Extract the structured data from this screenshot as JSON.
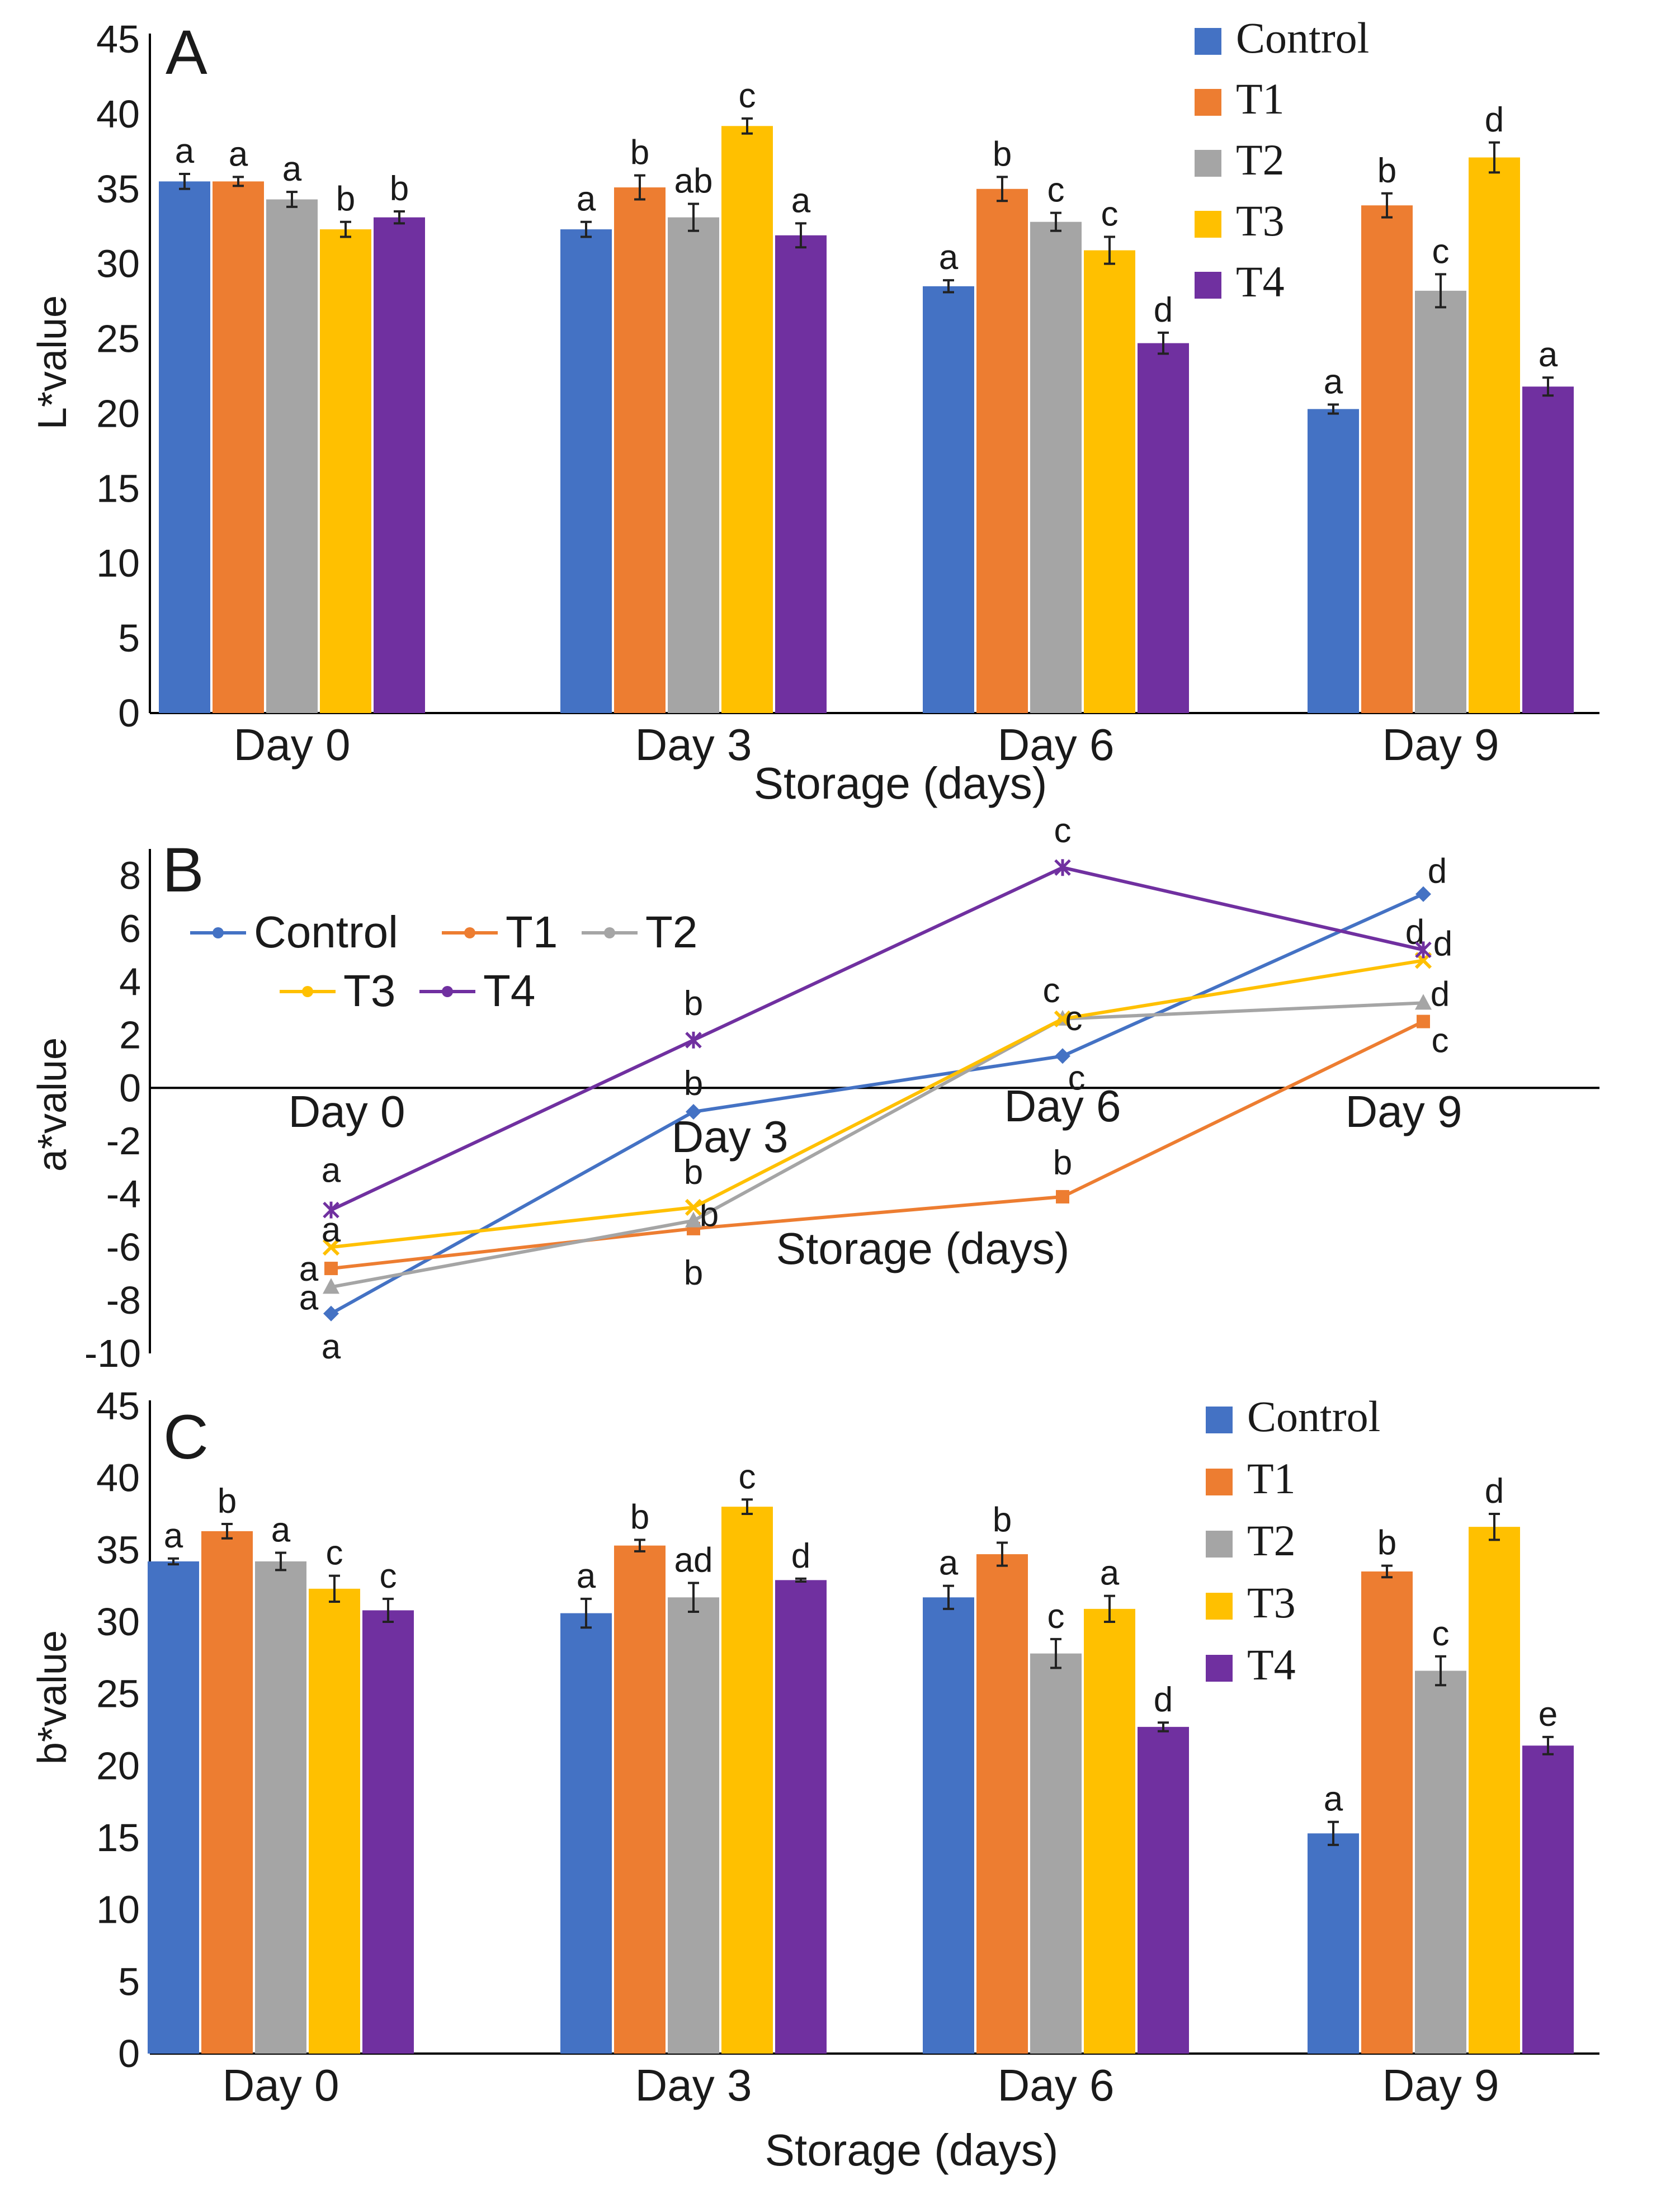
{
  "colors": {
    "Control": "#4472c4",
    "T1": "#ed7d31",
    "T2": "#a5a5a5",
    "T3": "#ffc000",
    "T4": "#7030a0"
  },
  "chart_data": [
    {
      "panel": "A",
      "type": "bar",
      "ylabel": "L*value",
      "xlabel": "Storage (days)",
      "ylim": [
        0,
        45
      ],
      "yticks": [
        "0",
        "5",
        "10",
        "15",
        "20",
        "25",
        "30",
        "35",
        "40",
        "45"
      ],
      "categories": [
        "Day 0",
        "Day 3",
        "Day 6",
        "Day 9"
      ],
      "legend": [
        "Control",
        "T1",
        "T2",
        "T3",
        "T4"
      ],
      "series": [
        {
          "name": "Control",
          "values": [
            35.5,
            32.3,
            28.5,
            20.3
          ],
          "errors": [
            0.5,
            0.5,
            0.4,
            0.3
          ],
          "letters": [
            "a",
            "a",
            "a",
            "a"
          ]
        },
        {
          "name": "T1",
          "values": [
            35.5,
            35.1,
            35.0,
            33.9
          ],
          "errors": [
            0.3,
            0.8,
            0.8,
            0.8
          ],
          "letters": [
            "a",
            "b",
            "b",
            "b"
          ]
        },
        {
          "name": "T2",
          "values": [
            34.3,
            33.1,
            32.8,
            28.2
          ],
          "errors": [
            0.5,
            0.9,
            0.6,
            1.1
          ],
          "letters": [
            "a",
            "ab",
            "c",
            "c"
          ]
        },
        {
          "name": "T3",
          "values": [
            32.3,
            39.2,
            30.9,
            37.1
          ],
          "errors": [
            0.5,
            0.5,
            0.9,
            1.0
          ],
          "letters": [
            "b",
            "c",
            "c",
            "d"
          ]
        },
        {
          "name": "T4",
          "values": [
            33.1,
            31.9,
            24.7,
            21.8
          ],
          "errors": [
            0.4,
            0.8,
            0.7,
            0.6
          ],
          "letters": [
            "b",
            "a",
            "d",
            "a"
          ]
        }
      ]
    },
    {
      "panel": "B",
      "type": "line",
      "ylabel": "a*value",
      "xlabel": "Storage (days)",
      "ylim": [
        -10,
        9
      ],
      "yticks": [
        "-10",
        "-8",
        "-6",
        "-4",
        "-2",
        "0",
        "2",
        "4",
        "6",
        "8"
      ],
      "categories": [
        "Day 0",
        "Day 3",
        "Day 6",
        "Day 9"
      ],
      "legend": [
        "Control",
        "T1",
        "T2",
        "T3",
        "T4"
      ],
      "series": [
        {
          "name": "Control",
          "values": [
            -8.5,
            -0.9,
            1.2,
            7.3
          ],
          "letters": [
            "a",
            "b",
            "c",
            "d"
          ]
        },
        {
          "name": "T1",
          "values": [
            -6.8,
            -5.3,
            -4.1,
            2.5
          ],
          "letters": [
            "a",
            "b",
            "b",
            "c"
          ]
        },
        {
          "name": "T2",
          "values": [
            -7.5,
            -5.0,
            2.6,
            3.2
          ],
          "letters": [
            "a",
            "b",
            "c",
            "d"
          ]
        },
        {
          "name": "T3",
          "values": [
            -6.0,
            -4.5,
            2.6,
            4.8
          ],
          "letters": [
            "a",
            "b",
            "c",
            "d"
          ]
        },
        {
          "name": "T4",
          "values": [
            -4.6,
            1.8,
            8.3,
            5.2
          ],
          "letters": [
            "a",
            "b",
            "c",
            "d"
          ]
        }
      ]
    },
    {
      "panel": "C",
      "type": "bar",
      "ylabel": "b*value",
      "xlabel": "Storage (days)",
      "ylim": [
        0,
        45
      ],
      "yticks": [
        "0",
        "5",
        "10",
        "15",
        "20",
        "25",
        "30",
        "35",
        "40",
        "45"
      ],
      "categories": [
        "Day 0",
        "Day 3",
        "Day 6",
        "Day 9"
      ],
      "legend": [
        "Control",
        "T1",
        "T2",
        "T3",
        "T4"
      ],
      "series": [
        {
          "name": "Control",
          "values": [
            34.2,
            30.6,
            31.7,
            15.3
          ],
          "errors": [
            0.2,
            1.0,
            0.8,
            0.8
          ],
          "letters": [
            "a",
            "a",
            "a",
            "a"
          ]
        },
        {
          "name": "T1",
          "values": [
            36.3,
            35.3,
            34.7,
            33.5
          ],
          "errors": [
            0.5,
            0.4,
            0.8,
            0.4
          ],
          "letters": [
            "b",
            "b",
            "b",
            "b"
          ]
        },
        {
          "name": "T2",
          "values": [
            34.2,
            31.7,
            27.8,
            26.6
          ],
          "errors": [
            0.6,
            1.0,
            1.0,
            1.0
          ],
          "letters": [
            "a",
            "ad",
            "c",
            "c"
          ]
        },
        {
          "name": "T3",
          "values": [
            32.3,
            38.0,
            30.9,
            36.6
          ],
          "errors": [
            0.9,
            0.5,
            0.9,
            0.9
          ],
          "letters": [
            "c",
            "c",
            "a",
            "d"
          ]
        },
        {
          "name": "T4",
          "values": [
            30.8,
            32.9,
            22.7,
            21.4
          ],
          "errors": [
            0.8,
            0.1,
            0.3,
            0.6
          ],
          "letters": [
            "c",
            "d",
            "d",
            "e"
          ]
        }
      ]
    }
  ]
}
